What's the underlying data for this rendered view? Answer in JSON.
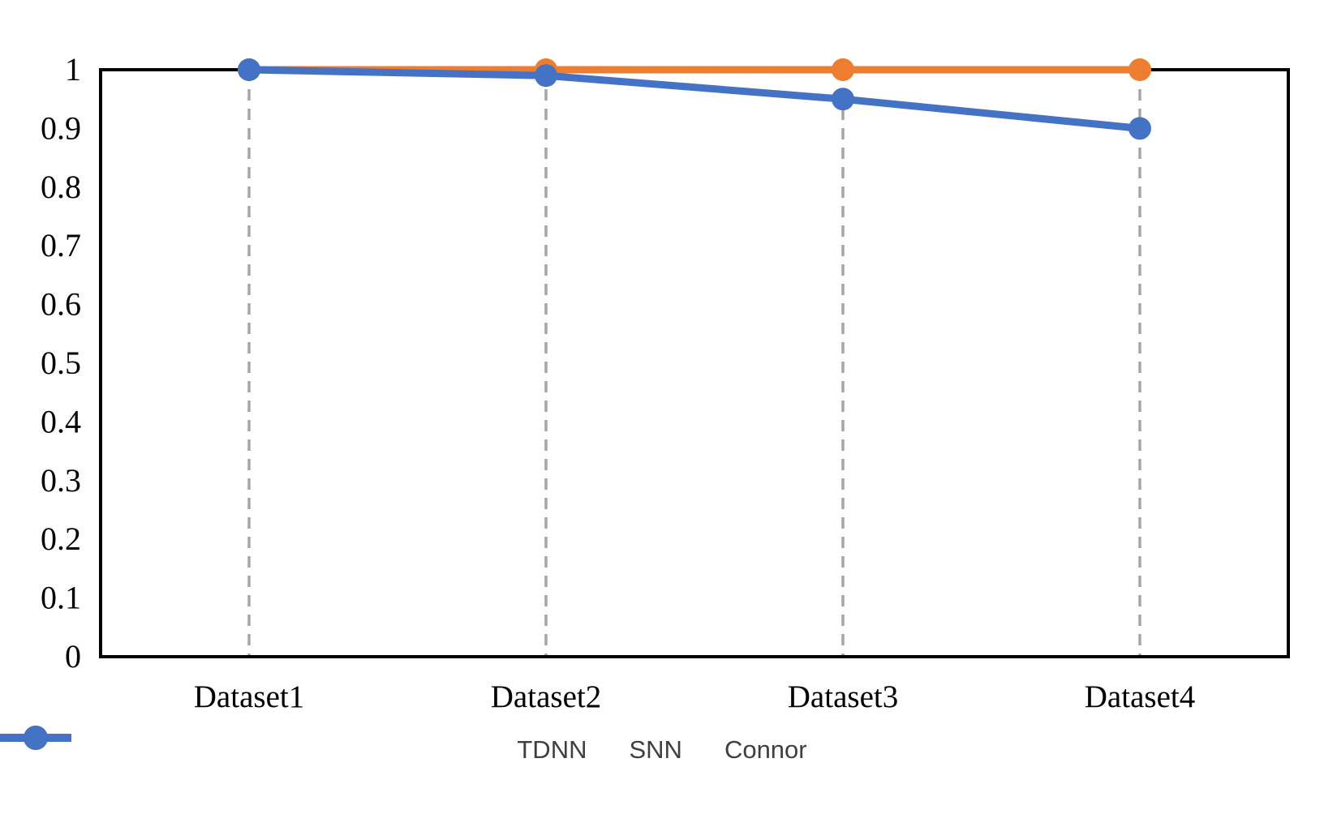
{
  "chart_data": {
    "type": "line",
    "title": "",
    "xlabel": "",
    "ylabel": "",
    "categories": [
      "Dataset1",
      "Dataset2",
      "Dataset3",
      "Dataset4"
    ],
    "series": [
      {
        "name": "TDNN",
        "color": "#FFC000",
        "values": [
          1,
          1,
          1,
          1
        ]
      },
      {
        "name": "SNN",
        "color": "#ED7D31",
        "values": [
          1,
          1,
          1,
          1
        ]
      },
      {
        "name": "Connor",
        "color": "#4472C4",
        "values": [
          1,
          0.99,
          0.95,
          0.9
        ]
      }
    ],
    "ylim": [
      0,
      1
    ],
    "ytick_labels": [
      "0",
      "0.1",
      "0.2",
      "0.3",
      "0.4",
      "0.5",
      "0.6",
      "0.7",
      "0.8",
      "0.9",
      "1"
    ],
    "grid": "vertical-dashed",
    "legend_position": "bottom",
    "colors": {
      "gridline": "#a6a6a6",
      "axis_border": "#000000",
      "tick_text": "#000000",
      "legend_text": "#3f3f3f",
      "background": "#ffffff"
    }
  }
}
